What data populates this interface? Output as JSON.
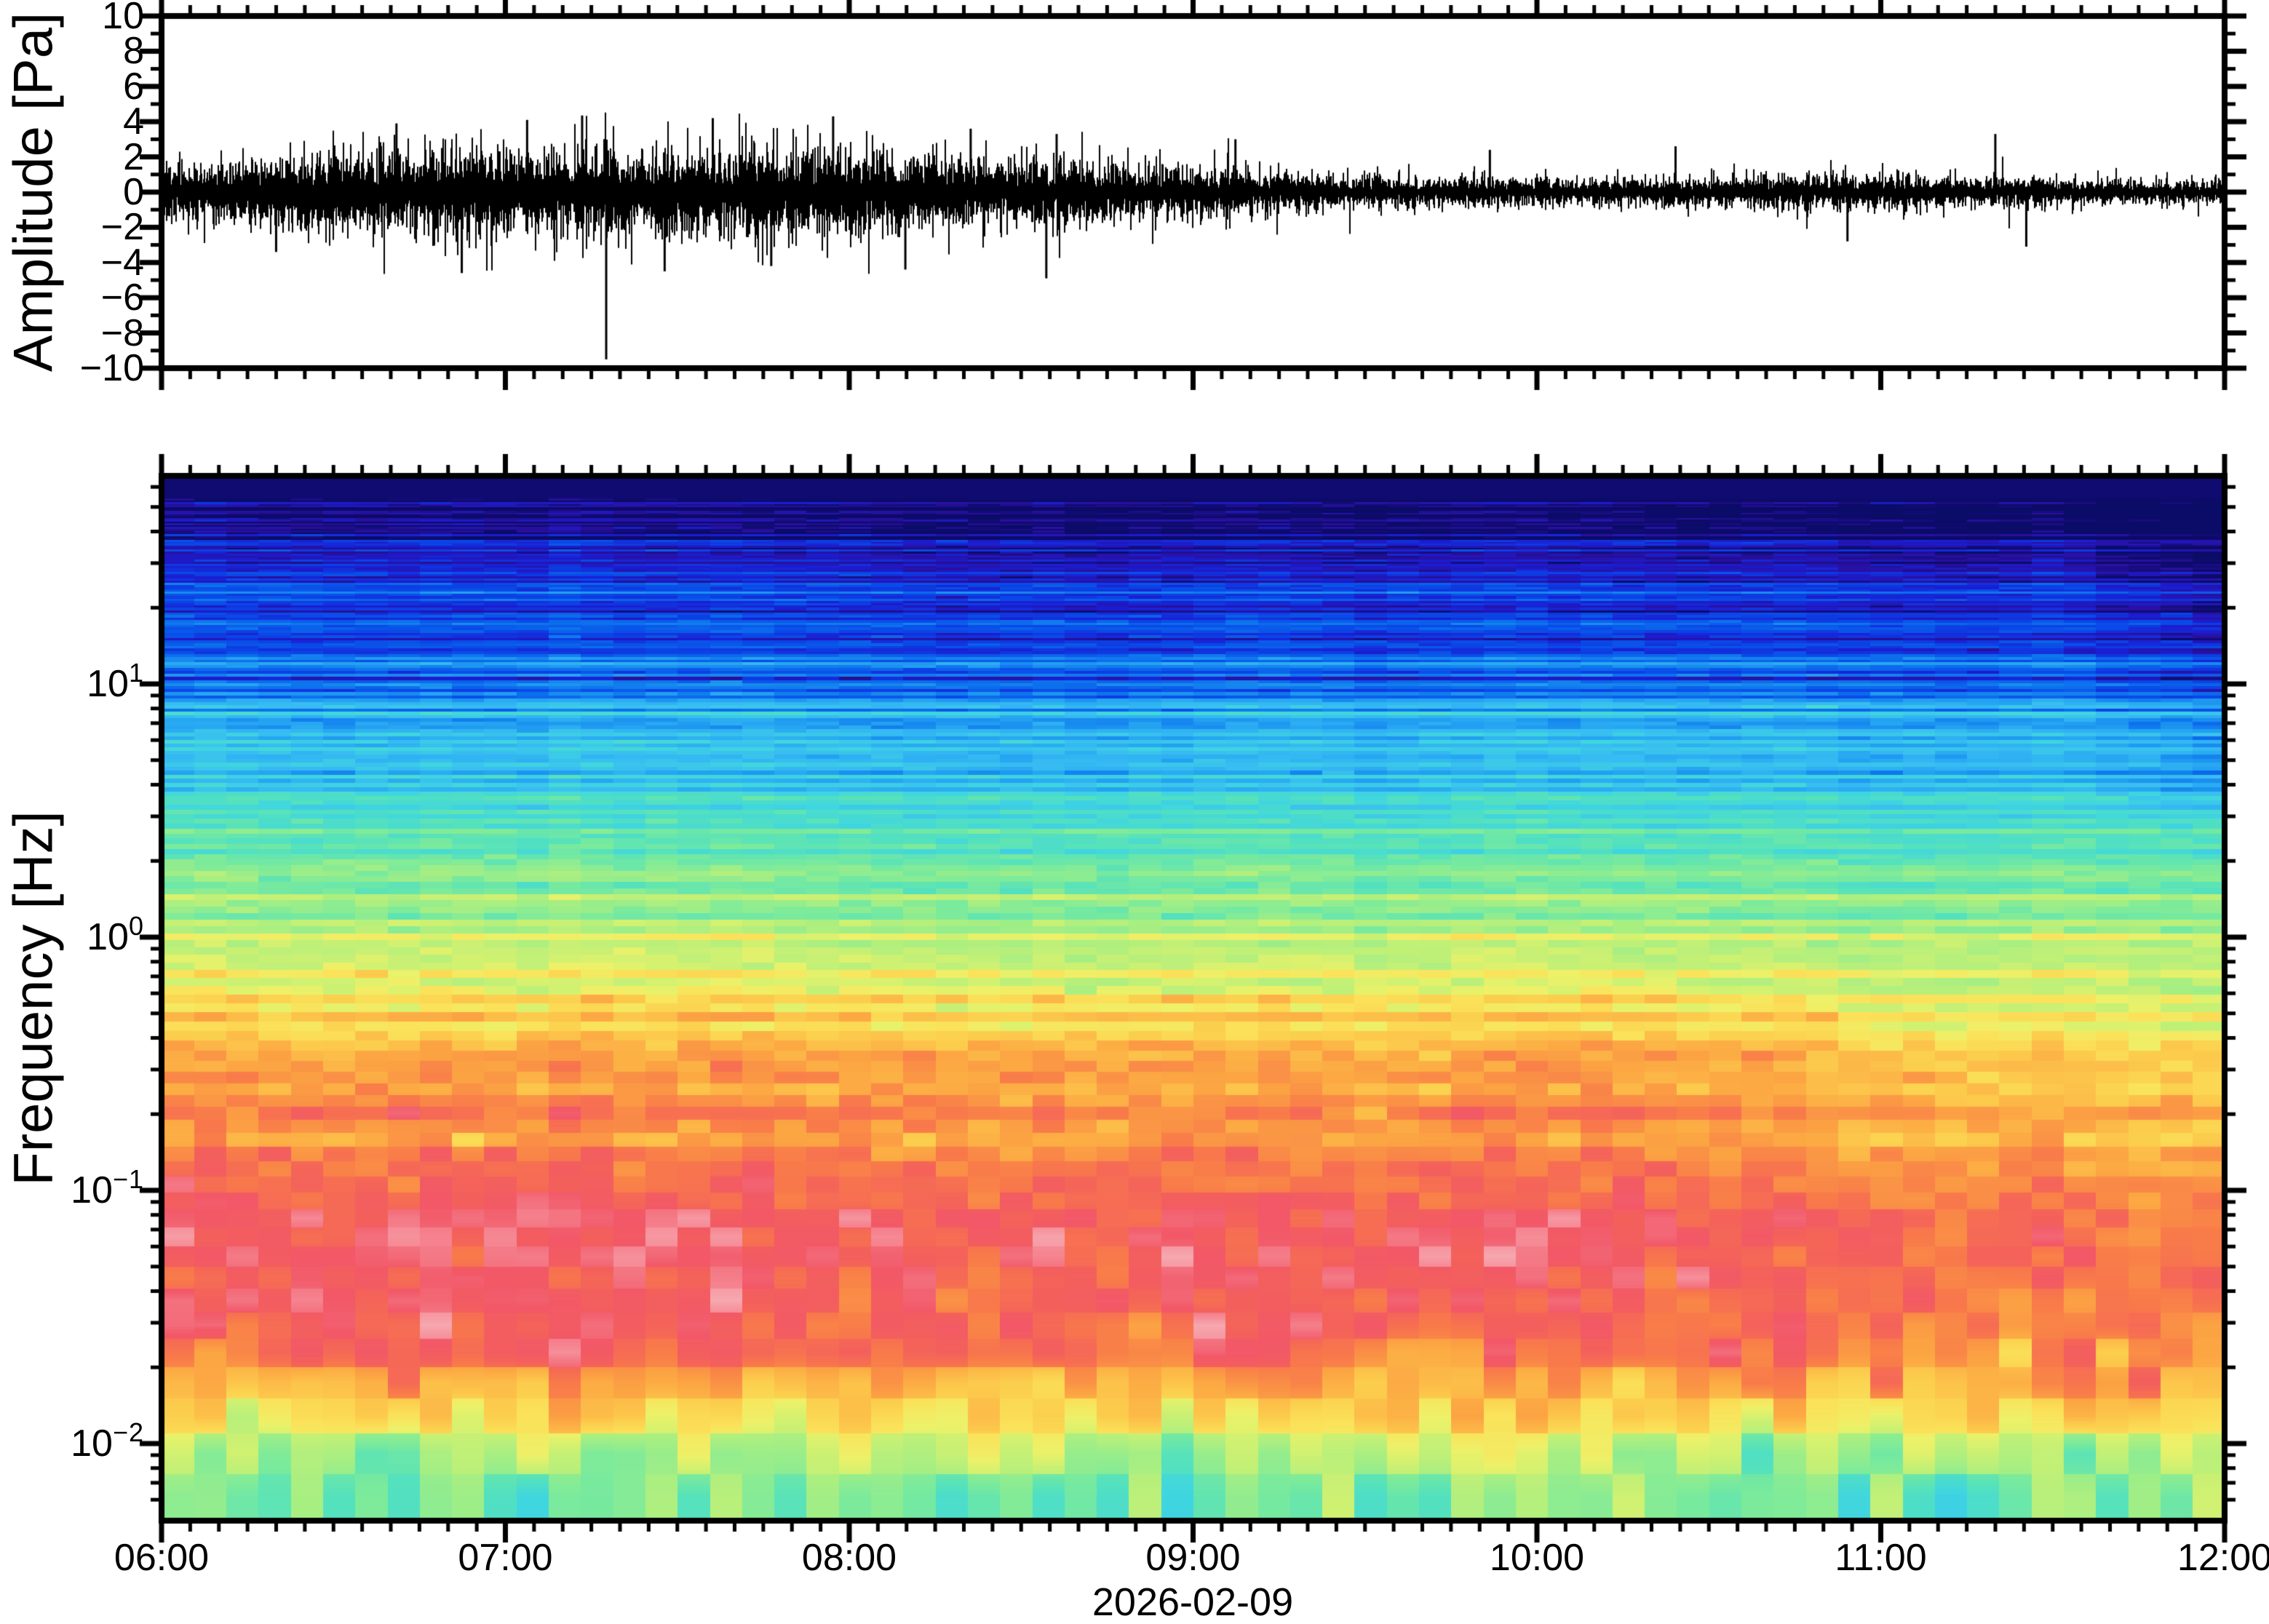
{
  "figure": {
    "background": "#ffffff",
    "frame_color": "#000000",
    "trace_color": "#000000"
  },
  "waveform_panel": {
    "ylabel": "Amplitude [Pa]",
    "ytick_labels": [
      "10",
      "8",
      "6",
      "4",
      "2",
      "0",
      "−2",
      "−4",
      "−6",
      "−8",
      "−10"
    ],
    "ytick_values": [
      10,
      8,
      6,
      4,
      2,
      0,
      -2,
      -4,
      -6,
      -8,
      -10
    ]
  },
  "spectrogram_panel": {
    "ylabel": "Frequency [Hz]",
    "ytick_labels": [
      {
        "base": "10",
        "exp": "1"
      },
      {
        "base": "10",
        "exp": "0"
      },
      {
        "base": "10",
        "exp": "−1"
      },
      {
        "base": "10",
        "exp": "−2"
      }
    ],
    "ytick_values_hz": [
      10,
      1,
      0.1,
      0.01
    ]
  },
  "time_axis": {
    "tick_labels": [
      "06:00",
      "07:00",
      "08:00",
      "09:00",
      "10:00",
      "11:00",
      "12:00"
    ],
    "tick_hours": [
      6,
      7,
      8,
      9,
      10,
      11,
      12
    ],
    "minor_tick_minutes": 5,
    "date": "2026-02-09"
  },
  "chart_data": [
    {
      "type": "line",
      "name": "infrasound-waveform",
      "ylabel": "Amplitude [Pa]",
      "ylim": [
        -10,
        10
      ],
      "xlim_hours": [
        6,
        12
      ],
      "x_tick_labels": [
        "06:00",
        "07:00",
        "08:00",
        "09:00",
        "10:00",
        "11:00",
        "12:00"
      ],
      "envelope_pa": [
        [
          6.0,
          1.35
        ],
        [
          6.2,
          1.6
        ],
        [
          6.45,
          1.9
        ],
        [
          6.7,
          2.1
        ],
        [
          7.0,
          2.1
        ],
        [
          7.25,
          2.25
        ],
        [
          7.5,
          2.15
        ],
        [
          7.8,
          2.1
        ],
        [
          8.05,
          2.0
        ],
        [
          8.3,
          1.8
        ],
        [
          8.55,
          1.65
        ],
        [
          8.8,
          1.5
        ],
        [
          9.0,
          1.3
        ],
        [
          9.2,
          1.05
        ],
        [
          9.45,
          0.85
        ],
        [
          9.7,
          0.75
        ],
        [
          10.0,
          0.68
        ],
        [
          10.3,
          0.72
        ],
        [
          10.6,
          0.82
        ],
        [
          10.9,
          0.85
        ],
        [
          11.15,
          0.8
        ],
        [
          11.4,
          0.72
        ],
        [
          11.7,
          0.62
        ],
        [
          12.0,
          0.58
        ]
      ],
      "spikes_pa": [
        [
          6.33,
          -3.4
        ],
        [
          6.68,
          3.9
        ],
        [
          6.87,
          -4.6
        ],
        [
          7.06,
          4.1
        ],
        [
          7.22,
          4.35
        ],
        [
          7.29,
          -9.5
        ],
        [
          7.46,
          -4.5
        ],
        [
          7.6,
          4.2
        ],
        [
          7.77,
          -4.2
        ],
        [
          7.95,
          4.3
        ],
        [
          8.16,
          -4.4
        ],
        [
          8.35,
          3.6
        ],
        [
          8.57,
          -4.9
        ],
        [
          8.6,
          3.3
        ],
        [
          9.12,
          3.0
        ],
        [
          9.86,
          2.4
        ],
        [
          10.4,
          2.6
        ],
        [
          10.9,
          -2.8
        ],
        [
          11.33,
          3.3
        ],
        [
          11.42,
          -3.1
        ]
      ],
      "noise_seed": 20260209
    },
    {
      "type": "heatmap",
      "name": "infrasound-spectrogram",
      "ylabel": "Frequency [Hz]",
      "xlim_hours": [
        6,
        12
      ],
      "freq_range_hz": [
        0.0049,
        66
      ],
      "log10_freq_range": [
        -2.305,
        1.822
      ],
      "log_scale": true,
      "time_columns": 64,
      "solid_low_power_above_log10f": 1.73,
      "power_profile_log10f_vs_level": [
        [
          -2.305,
          0.462
        ],
        [
          -2.1,
          0.53
        ],
        [
          -2.0,
          0.6
        ],
        [
          -1.9,
          0.7
        ],
        [
          -1.78,
          0.78
        ],
        [
          -1.68,
          0.84
        ],
        [
          -1.55,
          0.885
        ],
        [
          -1.3,
          0.905
        ],
        [
          -1.05,
          0.895
        ],
        [
          -0.9,
          0.855
        ],
        [
          -0.72,
          0.8
        ],
        [
          -0.45,
          0.74
        ],
        [
          -0.16,
          0.66
        ],
        [
          0.02,
          0.6
        ],
        [
          0.2,
          0.515
        ],
        [
          0.4,
          0.44
        ],
        [
          0.55,
          0.385
        ],
        [
          0.78,
          0.3
        ],
        [
          0.95,
          0.235
        ],
        [
          1.1,
          0.18
        ],
        [
          1.25,
          0.14
        ],
        [
          1.45,
          0.095
        ],
        [
          1.6,
          0.07
        ],
        [
          1.72,
          0.012
        ],
        [
          1.822,
          0.01
        ]
      ],
      "time_trend": {
        "high_freq_drop": 0.06,
        "mid_freq_drop": 0.022,
        "low_band_start_boost": 0.022,
        "low_band_late_drop": 0.062,
        "low_band_bump_center": 0.72,
        "low_band_bump_amp": 0.028
      },
      "noise": {
        "row_sigma": 0.048,
        "cell_sigma_min": 0.016,
        "cell_sigma_max": 0.058,
        "column_sigma": 0.012,
        "seed": 771203
      },
      "colormap_stops": [
        [
          0.0,
          "#0b0b68"
        ],
        [
          0.045,
          "#2a10a0"
        ],
        [
          0.09,
          "#1b1ed2"
        ],
        [
          0.14,
          "#0a47e8"
        ],
        [
          0.2,
          "#0d74ee"
        ],
        [
          0.265,
          "#25a5f2"
        ],
        [
          0.32,
          "#38bdf2"
        ],
        [
          0.38,
          "#40d6e0"
        ],
        [
          0.44,
          "#55e2bd"
        ],
        [
          0.5,
          "#7deb9b"
        ],
        [
          0.56,
          "#a8ef83"
        ],
        [
          0.62,
          "#ccf173"
        ],
        [
          0.66,
          "#eef169"
        ],
        [
          0.7,
          "#fbe25a"
        ],
        [
          0.74,
          "#fccf4e"
        ],
        [
          0.8,
          "#fca743"
        ],
        [
          0.86,
          "#f97c4a"
        ],
        [
          0.905,
          "#f4615c"
        ],
        [
          0.94,
          "#f25868"
        ],
        [
          0.97,
          "#f57f8b"
        ],
        [
          1.0,
          "#f7a8b0"
        ]
      ]
    }
  ]
}
